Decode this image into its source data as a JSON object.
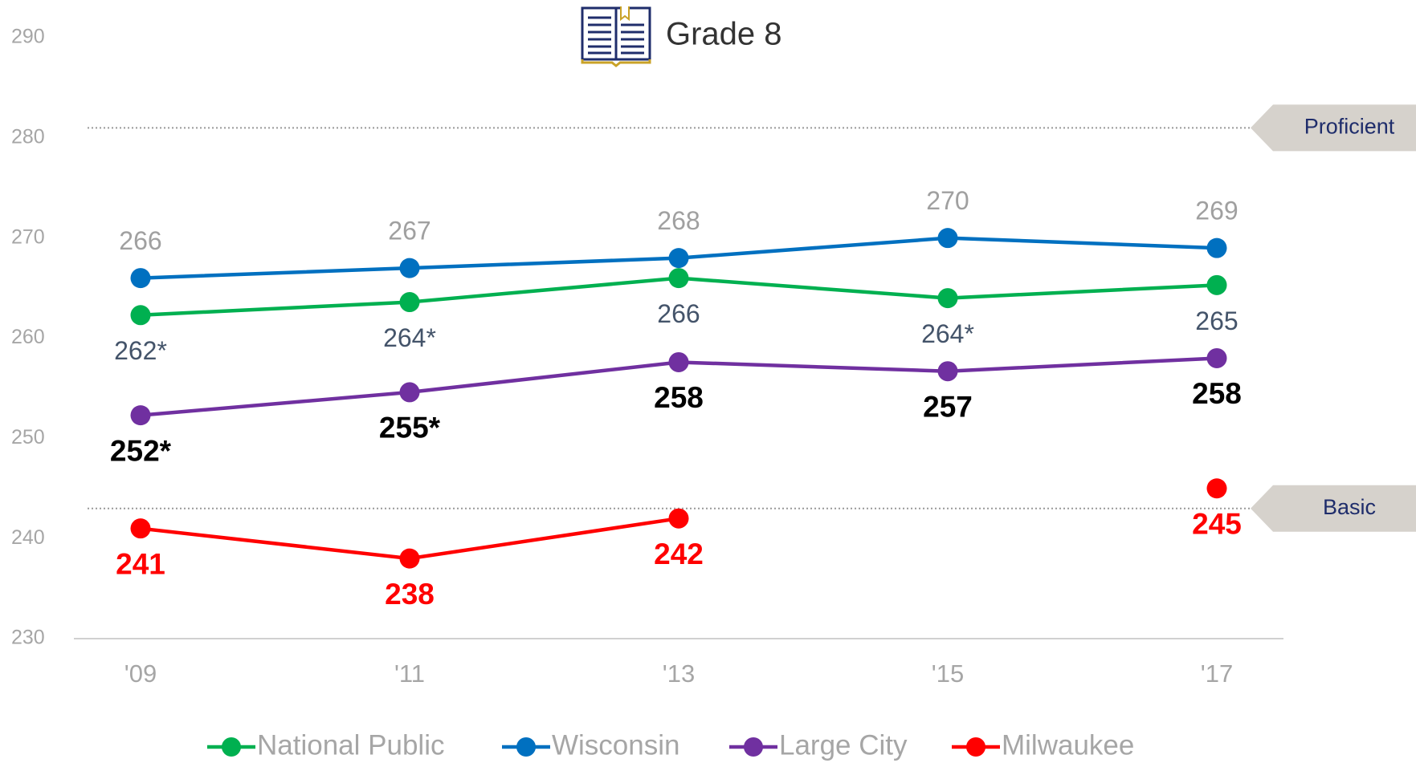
{
  "chart_data": {
    "type": "line",
    "title": "Grade 8",
    "categories": [
      "'09",
      "'11",
      "'13",
      "'15",
      "'17"
    ],
    "series": [
      {
        "name": "National Public",
        "color": "#00b050",
        "label_color": "#44546a",
        "label_weight": "normal",
        "label_position": "below",
        "values": [
          262.3,
          263.6,
          266,
          264,
          265.3
        ],
        "value_labels": [
          "262*",
          "264*",
          "266",
          "264*",
          "265"
        ]
      },
      {
        "name": "Wisconsin",
        "color": "#0070c0",
        "label_color": "#a0a0a0",
        "label_weight": "normal",
        "label_position": "above",
        "values": [
          266,
          267,
          268,
          270,
          269
        ]
      },
      {
        "name": "Large City",
        "color": "#7030a0",
        "label_color": "#000000",
        "label_weight": "bold",
        "label_position": "below",
        "values": [
          252.3,
          254.6,
          257.6,
          256.7,
          258
        ],
        "value_labels": [
          "252*",
          "255*",
          "258",
          "257",
          "258"
        ]
      },
      {
        "name": "Milwaukee",
        "color": "#ff0000",
        "label_color": "#ff0000",
        "label_weight": "bold",
        "label_position": "below",
        "values": [
          241,
          238,
          242,
          null,
          245
        ]
      }
    ],
    "reference_lines": [
      {
        "label": "Proficient",
        "value": 281
      },
      {
        "label": "Basic",
        "value": 243
      }
    ],
    "ylim": [
      230,
      290
    ],
    "yticks": [
      230,
      240,
      250,
      260,
      270,
      280,
      290
    ],
    "legend": "bottom"
  }
}
